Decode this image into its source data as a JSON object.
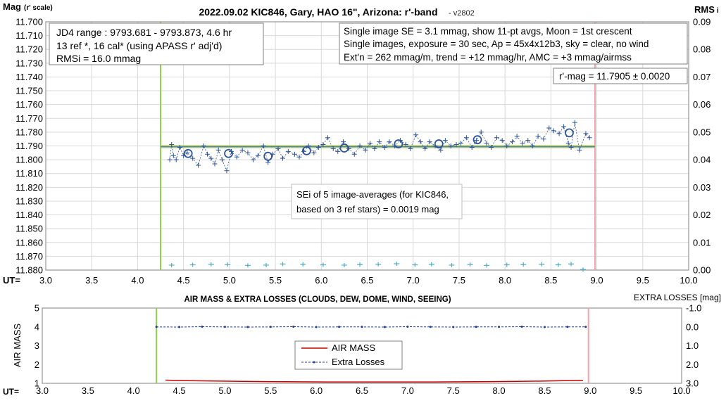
{
  "chart_data": [
    {
      "type": "scatter",
      "title": "2022.09.02 KIC846, Gary, HAO 16\", Arizona: r'-band",
      "version": "- v2802",
      "ylabel_main": "Mag",
      "ylabel_sub": "(r' scale)",
      "y2label": "RMS",
      "y2label_suffix": "i",
      "xlabel": "UT=",
      "xlim": [
        3.0,
        10.0
      ],
      "ylim": [
        11.88,
        11.7
      ],
      "y2lim": [
        0.0,
        0.09
      ],
      "x_ticks": [
        "3.0",
        "3.5",
        "4.0",
        "4.5",
        "5.0",
        "5.5",
        "6.0",
        "6.5",
        "7.0",
        "7.5",
        "8.0",
        "8.5",
        "9.0",
        "9.5",
        "10.0"
      ],
      "y_ticks": [
        "11.700",
        "11.710",
        "11.720",
        "11.730",
        "11.740",
        "11.750",
        "11.760",
        "11.770",
        "11.780",
        "11.790",
        "11.800",
        "11.810",
        "11.820",
        "11.830",
        "11.840",
        "11.850",
        "11.860",
        "11.870",
        "11.880"
      ],
      "y2_ticks": [
        "0.09",
        "0.08",
        "0.07",
        "0.06",
        "0.05",
        "0.04",
        "0.03",
        "0.02",
        "0.01",
        "0.00"
      ],
      "vlines": [
        {
          "x": 4.25,
          "color": "#8fd14f"
        },
        {
          "x": 8.98,
          "color": "#f4a3a8"
        }
      ],
      "mean_mag": 11.7905,
      "mean_line_range": [
        4.25,
        8.98
      ],
      "info_box_1": [
        "JD4 range : 9793.681 - 9793.873,  4.6  hr",
        "13 ref *, 16 cal* (using APASS r' adj'd)",
        "RMSi = 16.0 mmag"
      ],
      "info_box_2": [
        "Single image SE = 3.1 mmag, show  11-pt avgs, Moon = 1st crescent",
        "Single images, exposure = 30 sec, Ap = 45x4x12b3, sky = clear, no wind",
        "Ext'n = 262 mmag/m, trend = +12  mmag/hr, AMC = +3 mmag/airmss"
      ],
      "result_box": "r'-mag = 11.7905 ± 0.0020",
      "sei_box": [
        "SEi of 5 image-averages (for KIC846,",
        "based on 3 ref stars) = 0.0019 mag"
      ],
      "series": [
        {
          "name": "single images",
          "color": "#2f5597",
          "x": [
            4.35,
            4.37,
            4.39,
            4.42,
            4.46,
            4.5,
            4.54,
            4.6,
            4.66,
            4.72,
            4.76,
            4.8,
            4.84,
            4.88,
            4.92,
            4.97,
            5.02,
            5.08,
            5.14,
            5.2,
            5.26,
            5.31,
            5.37,
            5.42,
            5.47,
            5.53,
            5.58,
            5.64,
            5.71,
            5.76,
            5.81,
            5.86,
            5.92,
            5.97,
            6.02,
            6.07,
            6.13,
            6.18,
            6.24,
            6.3,
            6.36,
            6.42,
            6.48,
            6.53,
            6.58,
            6.63,
            6.69,
            6.74,
            6.8,
            6.86,
            6.92,
            6.97,
            7.03,
            7.08,
            7.13,
            7.18,
            7.24,
            7.3,
            7.35,
            7.41,
            7.47,
            7.52,
            7.58,
            7.64,
            7.69,
            7.74,
            7.8,
            7.85,
            7.91,
            7.97,
            8.02,
            8.08,
            8.13,
            8.19,
            8.25,
            8.3,
            8.36,
            8.42,
            8.48,
            8.53,
            8.59,
            8.64,
            8.69,
            8.72,
            8.76,
            8.81,
            8.88,
            8.92
          ],
          "y": [
            11.8,
            11.789,
            11.797,
            11.8,
            11.791,
            11.797,
            11.795,
            11.799,
            11.804,
            11.79,
            11.796,
            11.799,
            11.803,
            11.793,
            11.8,
            11.808,
            11.794,
            11.798,
            11.793,
            11.795,
            11.8,
            11.797,
            11.79,
            11.802,
            11.796,
            11.792,
            11.799,
            11.794,
            11.796,
            11.798,
            11.794,
            11.79,
            11.795,
            11.791,
            11.789,
            11.784,
            11.792,
            11.794,
            11.787,
            11.792,
            11.796,
            11.79,
            11.793,
            11.788,
            11.792,
            11.787,
            11.791,
            11.787,
            11.79,
            11.786,
            11.789,
            11.792,
            11.782,
            11.787,
            11.792,
            11.787,
            11.79,
            11.793,
            11.786,
            11.79,
            11.789,
            11.788,
            11.784,
            11.791,
            11.786,
            11.78,
            11.788,
            11.791,
            11.784,
            11.786,
            11.79,
            11.787,
            11.783,
            11.788,
            11.786,
            11.79,
            11.783,
            11.785,
            11.777,
            11.779,
            11.781,
            11.776,
            11.788,
            11.791,
            11.773,
            11.793,
            11.781,
            11.784
          ]
        },
        {
          "name": "11-pt averages",
          "color": "#2f5597",
          "x": [
            4.55,
            4.99,
            5.42,
            5.84,
            6.25,
            6.84,
            7.28,
            7.7,
            8.7
          ],
          "y": [
            11.7955,
            11.7955,
            11.7975,
            11.7935,
            11.7915,
            11.7885,
            11.7885,
            11.7855,
            11.7805
          ]
        },
        {
          "name": "RMS",
          "color": "#4bacc6",
          "x": [
            4.37,
            4.6,
            4.8,
            4.98,
            5.2,
            5.4,
            5.58,
            5.8,
            6.02,
            6.25,
            6.42,
            6.62,
            6.82,
            7.02,
            7.2,
            7.42,
            7.62,
            7.8,
            8.02,
            8.2,
            8.4,
            8.58,
            8.72,
            8.85
          ],
          "y": [
            0.0018,
            0.0019,
            0.0021,
            0.002,
            0.0017,
            0.0018,
            0.0022,
            0.0021,
            0.0019,
            0.0018,
            0.002,
            0.0021,
            0.0023,
            0.0019,
            0.0021,
            0.0018,
            0.002,
            0.0017,
            0.0019,
            0.002,
            0.0021,
            0.0019,
            0.0022,
            0.0002
          ]
        }
      ]
    },
    {
      "type": "line",
      "title": "AIR MASS & EXTRA LOSSES (CLOUDS, DEW, DOME, WIND, SEEING)",
      "ylabel": "AIR MASS",
      "y2label": "EXTRA LOSSES [mag]",
      "xlabel": "UT=",
      "xlim": [
        3.0,
        10.0
      ],
      "ylim": [
        1,
        5
      ],
      "y2lim": [
        3.0,
        -1.0
      ],
      "x_ticks": [
        "3.0",
        "3.5",
        "4.0",
        "4.5",
        "5.0",
        "5.5",
        "6.0",
        "6.5",
        "7.0",
        "7.5",
        "8.0",
        "8.5",
        "9.0",
        "9.5",
        "10.0"
      ],
      "y_ticks": [
        "5",
        "4",
        "3",
        "2",
        "1"
      ],
      "y2_ticks": [
        "-1.0",
        "0.0",
        "1.0",
        "2.0",
        "3.0"
      ],
      "vlines": [
        {
          "x": 4.25,
          "color": "#8fd14f"
        },
        {
          "x": 8.98,
          "color": "#f4a3a8"
        }
      ],
      "legend": [
        "AIR MASS",
        "Extra Losses"
      ],
      "series": [
        {
          "name": "AIR MASS",
          "color": "#c00000",
          "x": [
            4.35,
            4.6,
            4.9,
            5.2,
            5.5,
            5.8,
            6.1,
            6.4,
            6.7,
            7.0,
            7.3,
            7.6,
            7.9,
            8.2,
            8.5,
            8.7,
            8.92
          ],
          "y": [
            1.17,
            1.14,
            1.12,
            1.1,
            1.09,
            1.08,
            1.07,
            1.07,
            1.07,
            1.07,
            1.07,
            1.08,
            1.09,
            1.1,
            1.12,
            1.14,
            1.16
          ]
        },
        {
          "name": "Extra Losses",
          "color": "#1f3a93",
          "x": [
            4.25,
            4.5,
            4.75,
            5.0,
            5.25,
            5.5,
            5.75,
            6.0,
            6.25,
            6.5,
            6.75,
            7.0,
            7.25,
            7.5,
            7.75,
            8.0,
            8.25,
            8.5,
            8.75,
            8.95
          ],
          "y": [
            0.0,
            0.01,
            -0.01,
            0.0,
            0.01,
            0.0,
            -0.01,
            0.01,
            0.0,
            0.0,
            0.01,
            -0.01,
            0.0,
            0.01,
            0.0,
            0.0,
            -0.01,
            0.01,
            0.0,
            0.0
          ]
        }
      ]
    }
  ]
}
